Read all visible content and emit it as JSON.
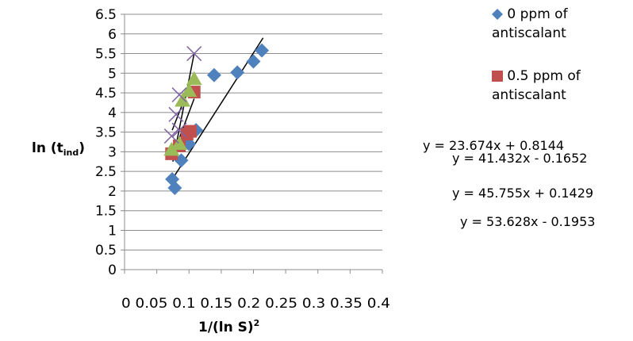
{
  "chart_data": {
    "type": "scatter",
    "xlabel": "1/(ln S)",
    "xlabel_sup": "2",
    "ylabel": "ln (t",
    "ylabel_sub": "ind",
    "ylabel_close": ")",
    "xlim": [
      0,
      0.4
    ],
    "ylim": [
      0,
      6.5
    ],
    "x_ticks": [
      "0",
      "0.05",
      "0.1",
      "0.15",
      "0.2",
      "0.25",
      "0.3",
      "0.35",
      "0.4"
    ],
    "y_ticks": [
      "0",
      "0.5",
      "1",
      "1.5",
      "2",
      "2.5",
      "3",
      "3.5",
      "4",
      "4.5",
      "5",
      "5.5",
      "6",
      "6.5"
    ],
    "legend_position": "right",
    "series": [
      {
        "name": "0 ppm of antiscalant",
        "marker": "diamond",
        "color": "#4f81bd",
        "points": [
          [
            0.074,
            2.3
          ],
          [
            0.078,
            2.08
          ],
          [
            0.088,
            2.78
          ],
          [
            0.1,
            3.2
          ],
          [
            0.111,
            3.55
          ],
          [
            0.139,
            4.95
          ],
          [
            0.175,
            5.02
          ],
          [
            0.2,
            5.3
          ],
          [
            0.213,
            5.58
          ]
        ]
      },
      {
        "name": "0.5 ppm of antiscalant",
        "marker": "square",
        "color": "#c0504d",
        "points": [
          [
            0.073,
            2.95
          ],
          [
            0.085,
            3.15
          ],
          [
            0.097,
            3.45
          ],
          [
            0.102,
            3.52
          ],
          [
            0.108,
            4.52
          ]
        ]
      },
      {
        "marker": "triangle",
        "color": "#9bbb59",
        "points": [
          [
            0.073,
            3.05
          ],
          [
            0.085,
            3.2
          ],
          [
            0.09,
            4.3
          ],
          [
            0.1,
            4.55
          ],
          [
            0.108,
            4.85
          ]
        ]
      },
      {
        "marker": "x",
        "color": "#8064a2",
        "points": [
          [
            0.073,
            3.4
          ],
          [
            0.085,
            3.55
          ],
          [
            0.08,
            3.95
          ],
          [
            0.085,
            4.45
          ],
          [
            0.108,
            5.5
          ]
        ]
      }
    ],
    "trendlines": [
      {
        "x": [
          0.078,
          0.215
        ],
        "y": [
          2.4,
          5.9
        ]
      },
      {
        "x": [
          0.077,
          0.108
        ],
        "y": [
          3.0,
          4.35
        ]
      },
      {
        "x": [
          0.074,
          0.105
        ],
        "y": [
          3.55,
          4.85
        ]
      },
      {
        "x": [
          0.075,
          0.108
        ],
        "y": [
          2.75,
          5.5
        ]
      }
    ],
    "equations": [
      "y = 23.674x + 0.8144",
      "y = 41.432x - 0.1652",
      "y = 45.755x + 0.1429",
      "y = 53.628x - 0.1953"
    ]
  }
}
